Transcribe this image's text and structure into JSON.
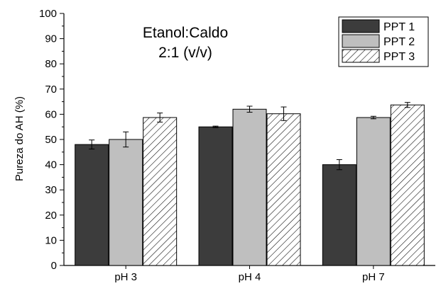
{
  "chart_data": {
    "type": "bar",
    "title_lines": [
      "Etanol:Caldo",
      "2:1 (v/v)"
    ],
    "xlabel": "",
    "ylabel": "Pureza do AH (%)",
    "ylim": [
      0,
      100
    ],
    "yticks": [
      0,
      10,
      20,
      30,
      40,
      50,
      60,
      70,
      80,
      90,
      100
    ],
    "categories": [
      "pH 3",
      "pH 4",
      "pH 7"
    ],
    "legend_position": "top-right",
    "grid": false,
    "series": [
      {
        "name": "PPT 1",
        "fill": "#3c3c3c",
        "pattern": "solid",
        "values": [
          48,
          55,
          40
        ],
        "errors": [
          1.8,
          0.3,
          2.0
        ]
      },
      {
        "name": "PPT 2",
        "fill": "#bfbfbf",
        "pattern": "solid",
        "values": [
          50,
          62,
          58.7
        ],
        "errors": [
          3.0,
          1.2,
          0.5
        ]
      },
      {
        "name": "PPT 3",
        "fill": "#ffffff",
        "pattern": "hatch",
        "values": [
          58.7,
          60.2,
          63.7
        ],
        "errors": [
          1.8,
          2.7,
          1.0
        ]
      }
    ]
  }
}
